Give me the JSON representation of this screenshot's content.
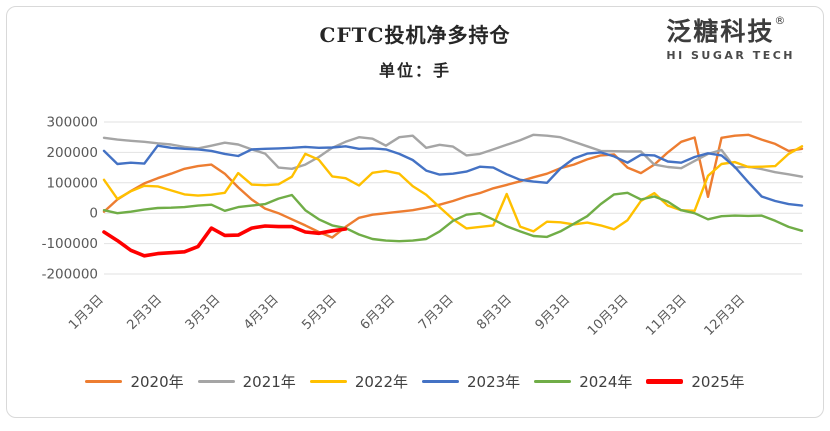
{
  "header": {
    "title": "CFTC投机净多持仓",
    "subtitle": "单位：手"
  },
  "logo": {
    "name": "泛糖科技",
    "registered_mark": "®",
    "tagline": "HI SUGAR TECH"
  },
  "chart_data": {
    "type": "line",
    "title": "CFTC投机净多持仓",
    "unit_label": "单位：手",
    "x_axis_note": "weekly points from Jan 3 to late Dec; monthly tick labels",
    "x_tick_labels": [
      "1月3日",
      "2月3日",
      "3月3日",
      "4月3日",
      "5月3日",
      "6月3日",
      "7月3日",
      "8月3日",
      "9月3日",
      "10月3日",
      "11月3日",
      "12月3日"
    ],
    "y_tick_labels": [
      "300000",
      "200000",
      "100000",
      "0",
      "-100000",
      "-200000"
    ],
    "ylim": [
      -200000,
      300000
    ],
    "grid": "horizontal-only",
    "grid_color": "#e2e2e2",
    "axis_text_color": "#595959",
    "legend_position": "bottom",
    "series": [
      {
        "name": "2020年",
        "color": "#ED7D31",
        "line_width": 2.4,
        "values": [
          5000,
          45000,
          73000,
          98000,
          115000,
          130000,
          146000,
          155000,
          160000,
          130000,
          85000,
          45000,
          15000,
          0,
          -20000,
          -40000,
          -62000,
          -80000,
          -45000,
          -15000,
          -5000,
          0,
          5000,
          10000,
          18000,
          28000,
          40000,
          55000,
          66000,
          82000,
          93000,
          105000,
          118000,
          130000,
          148000,
          160000,
          177000,
          190000,
          193000,
          150000,
          132000,
          160000,
          200000,
          235000,
          249000,
          54000,
          248000,
          255000,
          258000,
          242000,
          228000,
          205000,
          212000
        ]
      },
      {
        "name": "2021年",
        "color": "#A5A5A5",
        "line_width": 2.4,
        "values": [
          248000,
          242000,
          238000,
          235000,
          230000,
          226000,
          218000,
          213000,
          222000,
          232000,
          226000,
          210000,
          196000,
          150000,
          146000,
          160000,
          185000,
          215000,
          235000,
          250000,
          245000,
          222000,
          250000,
          255000,
          215000,
          225000,
          219000,
          190000,
          195000,
          210000,
          225000,
          240000,
          258000,
          255000,
          250000,
          235000,
          220000,
          205000,
          204000,
          203000,
          203000,
          160000,
          152000,
          148000,
          172000,
          195000,
          208000,
          150000,
          153000,
          145000,
          135000,
          128000,
          120000
        ]
      },
      {
        "name": "2022年",
        "color": "#FFC000",
        "line_width": 2.4,
        "values": [
          110000,
          47000,
          72000,
          90000,
          88000,
          75000,
          62000,
          58000,
          61000,
          67000,
          132000,
          94000,
          92000,
          95000,
          120000,
          195000,
          176000,
          121000,
          115000,
          91000,
          133000,
          139000,
          130000,
          89000,
          61000,
          20000,
          -20000,
          -50000,
          -45000,
          -40000,
          63000,
          -44000,
          -60000,
          -28000,
          -30000,
          -37000,
          -31000,
          -40000,
          -53000,
          -23000,
          40000,
          66000,
          25000,
          10000,
          8000,
          123000,
          162000,
          168000,
          152000,
          153000,
          155000,
          195000,
          220000
        ]
      },
      {
        "name": "2023年",
        "color": "#4472C4",
        "line_width": 2.4,
        "values": [
          205000,
          162000,
          166000,
          163000,
          222000,
          215000,
          212000,
          210000,
          205000,
          195000,
          188000,
          210000,
          212000,
          213000,
          215000,
          218000,
          215000,
          216000,
          220000,
          212000,
          213000,
          210000,
          195000,
          175000,
          140000,
          127000,
          130000,
          137000,
          153000,
          150000,
          128000,
          110000,
          104000,
          100000,
          147000,
          180000,
          196000,
          200000,
          187000,
          166000,
          192000,
          190000,
          170000,
          166000,
          185000,
          197000,
          190000,
          152000,
          102000,
          55000,
          40000,
          30000,
          25000
        ]
      },
      {
        "name": "2024年",
        "color": "#70AD47",
        "line_width": 2.4,
        "values": [
          10000,
          0,
          5000,
          12000,
          17000,
          18000,
          20000,
          25000,
          28000,
          8000,
          20000,
          25000,
          30000,
          48000,
          60000,
          10000,
          -20000,
          -40000,
          -49000,
          -70000,
          -85000,
          -90000,
          -92000,
          -90000,
          -85000,
          -60000,
          -25000,
          -5000,
          0,
          -21000,
          -43000,
          -60000,
          -75000,
          -78000,
          -60000,
          -35000,
          -10000,
          30000,
          62000,
          67000,
          45000,
          55000,
          38000,
          10000,
          0,
          -20000,
          -10000,
          -8000,
          -9000,
          -8000,
          -25000,
          -45000,
          -58000
        ]
      },
      {
        "name": "2025年",
        "color": "#FE0000",
        "line_width": 3.6,
        "partial_year": true,
        "values": [
          -62000,
          -90000,
          -122000,
          -140000,
          -133000,
          -130000,
          -127000,
          -110000,
          -49000,
          -73000,
          -72000,
          -49000,
          -42000,
          -44000,
          -44000,
          -62000,
          -66000,
          -58000,
          -52000
        ]
      }
    ]
  }
}
